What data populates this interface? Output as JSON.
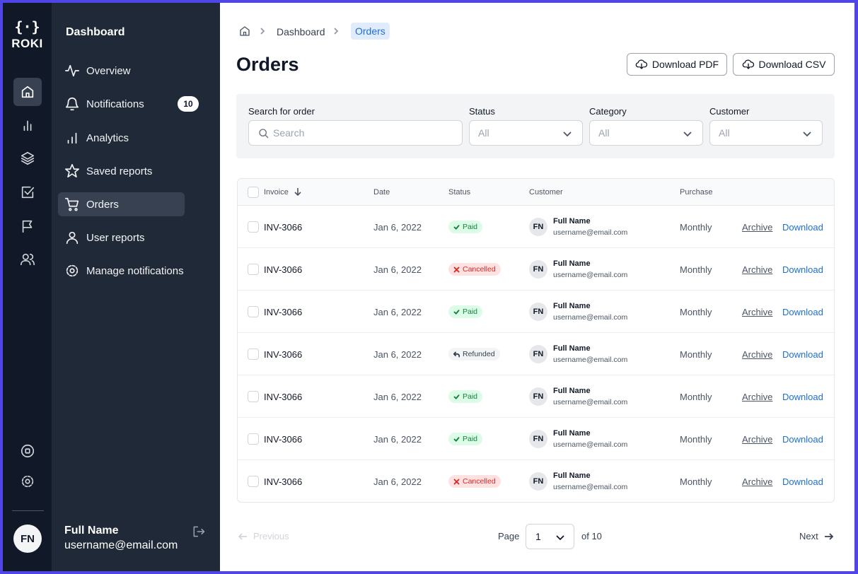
{
  "logo": {
    "symbol": "{·}",
    "name": "ROKI"
  },
  "sidebar": {
    "title": "Dashboard",
    "items": [
      {
        "label": "Overview"
      },
      {
        "label": "Notifications",
        "badge": 10
      },
      {
        "label": "Analytics"
      },
      {
        "label": "Saved reports"
      },
      {
        "label": "Orders"
      },
      {
        "label": "User reports"
      },
      {
        "label": "Manage notifications"
      }
    ],
    "user": {
      "initials": "FN",
      "name": "Full Name",
      "email": "username@email.com"
    }
  },
  "breadcrumb": [
    "Dashboard",
    "Orders"
  ],
  "header": {
    "title": "Orders",
    "buttons": [
      "Download PDF",
      "Download CSV"
    ]
  },
  "filters": [
    {
      "label": "Search for order",
      "placeholder": "Search"
    },
    {
      "label": "Status",
      "value": "All"
    },
    {
      "label": "Category",
      "value": "All"
    },
    {
      "label": "Customer",
      "value": "All"
    }
  ],
  "table": {
    "columns": [
      "Invoice",
      "Date",
      "Status",
      "Customer",
      "Purchase"
    ],
    "rows": [
      {
        "invoice": "INV-3066",
        "date": "Jan 6, 2022",
        "status": {
          "label": "Paid",
          "color": "#15803d"
        },
        "initials": "FN",
        "name": "Full Name",
        "email": "username@email.com",
        "purchase": "Monthly",
        "actions": [
          "Archive",
          "Download"
        ]
      },
      {
        "invoice": "INV-3066",
        "date": "Jan 6, 2022",
        "status": {
          "label": "Cancelled",
          "color": "#dc2626"
        },
        "initials": "FN",
        "name": "Full Name",
        "email": "username@email.com",
        "purchase": "Monthly",
        "actions": [
          "Archive",
          "Download"
        ]
      },
      {
        "invoice": "INV-3066",
        "date": "Jan 6, 2022",
        "status": {
          "label": "Paid",
          "color": "#15803d"
        },
        "initials": "FN",
        "name": "Full Name",
        "email": "username@email.com",
        "purchase": "Monthly",
        "actions": [
          "Archive",
          "Download"
        ]
      },
      {
        "invoice": "INV-3066",
        "date": "Jan 6, 2022",
        "status": {
          "label": "Refunded",
          "color": "#374151"
        },
        "initials": "FN",
        "name": "Full Name",
        "email": "username@email.com",
        "purchase": "Monthly",
        "actions": [
          "Archive",
          "Download"
        ]
      },
      {
        "invoice": "INV-3066",
        "date": "Jan 6, 2022",
        "status": {
          "label": "Paid",
          "color": "#15803d"
        },
        "initials": "FN",
        "name": "Full Name",
        "email": "username@email.com",
        "purchase": "Monthly",
        "actions": [
          "Archive",
          "Download"
        ]
      },
      {
        "invoice": "INV-3066",
        "date": "Jan 6, 2022",
        "status": {
          "label": "Paid",
          "color": "#15803d"
        },
        "initials": "FN",
        "name": "Full Name",
        "email": "username@email.com",
        "purchase": "Monthly",
        "actions": [
          "Archive",
          "Download"
        ]
      },
      {
        "invoice": "INV-3066",
        "date": "Jan 6, 2022",
        "status": {
          "label": "Cancelled",
          "color": "#dc2626"
        },
        "initials": "FN",
        "name": "Full Name",
        "email": "username@email.com",
        "purchase": "Monthly",
        "actions": [
          "Archive",
          "Download"
        ]
      }
    ]
  },
  "pagination": {
    "previous": "Previous",
    "page_label": "Page",
    "page": 1,
    "of": "of 10",
    "next": "Next"
  }
}
